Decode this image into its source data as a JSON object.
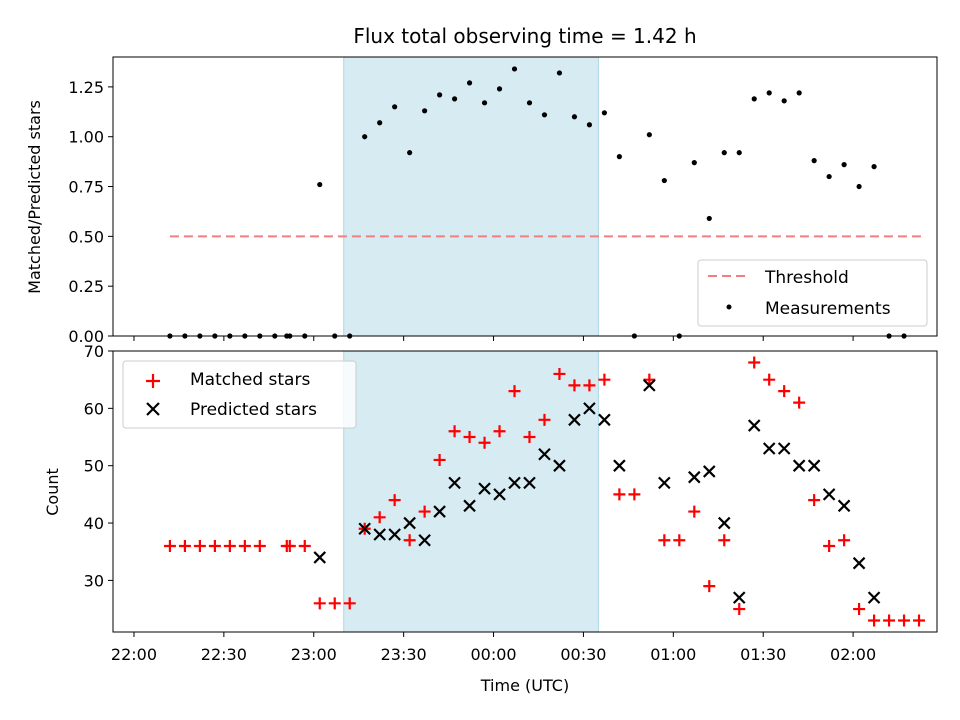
{
  "chart_data": {
    "title": "Flux total observing time = 1.42 h",
    "xlabel": "Time (UTC)",
    "x_ticks": [
      "22:00",
      "22:30",
      "23:00",
      "23:30",
      "00:00",
      "00:30",
      "01:00",
      "01:30",
      "02:00"
    ],
    "x_tick_minutes": [
      0,
      30,
      60,
      90,
      120,
      150,
      180,
      210,
      240
    ],
    "xlim_minutes": [
      -7,
      268
    ],
    "shaded_span_minutes": [
      70,
      155
    ],
    "shade_color": "#add8e6",
    "panels": [
      {
        "type": "scatter",
        "ylabel": "Matched/Predicted stars",
        "ylim": [
          0,
          1.4
        ],
        "y_ticks": [
          "0.00",
          "0.25",
          "0.50",
          "0.75",
          "1.00",
          "1.25"
        ],
        "y_tick_values": [
          0,
          0.25,
          0.5,
          0.75,
          1.0,
          1.25
        ],
        "threshold": {
          "name": "Threshold",
          "value": 0.5,
          "x_range_minutes": [
            12,
            263
          ],
          "color": "#f08080"
        },
        "legend": {
          "placement": "lower-right",
          "entries": [
            "Threshold",
            "Measurements"
          ]
        },
        "series": [
          {
            "name": "Measurements",
            "marker": "dot",
            "color": "#000000",
            "x_minutes": [
              12,
              17,
              22,
              27,
              32,
              37,
              42,
              47,
              51,
              52,
              57,
              62,
              67,
              72,
              77,
              82,
              87,
              92,
              97,
              102,
              107,
              112,
              117,
              122,
              127,
              132,
              137,
              142,
              147,
              152,
              157,
              162,
              167,
              172,
              177,
              182,
              187,
              192,
              197,
              202,
              207,
              212,
              217,
              222,
              227,
              232,
              237,
              242,
              247,
              252,
              257
            ],
            "y": [
              0,
              0,
              0,
              0,
              0,
              0,
              0,
              0,
              0,
              0,
              0,
              0.76,
              0,
              0,
              1.0,
              1.07,
              1.15,
              0.92,
              1.13,
              1.21,
              1.19,
              1.27,
              1.17,
              1.24,
              1.34,
              1.17,
              1.11,
              1.32,
              1.1,
              1.06,
              1.12,
              0.9,
              0,
              1.01,
              0.78,
              0,
              0.87,
              0.59,
              0.92,
              0.92,
              1.19,
              1.22,
              1.18,
              1.22,
              0.88,
              0.8,
              0.86,
              0.75,
              0.85,
              0,
              0
            ]
          }
        ]
      },
      {
        "type": "scatter",
        "ylabel": "Count",
        "ylim": [
          21,
          70
        ],
        "y_ticks": [
          "30",
          "40",
          "50",
          "60",
          "70"
        ],
        "y_tick_values": [
          30,
          40,
          50,
          60,
          70
        ],
        "legend": {
          "placement": "upper-left",
          "entries": [
            "Matched stars",
            "Predicted stars"
          ]
        },
        "series": [
          {
            "name": "Matched stars",
            "marker": "plus",
            "color": "#ff0000",
            "x_minutes": [
              12,
              17,
              22,
              27,
              32,
              37,
              42,
              51,
              52,
              57,
              62,
              67,
              72,
              77,
              82,
              87,
              92,
              97,
              102,
              107,
              112,
              117,
              122,
              127,
              132,
              137,
              142,
              147,
              152,
              157,
              162,
              167,
              172,
              177,
              182,
              187,
              192,
              197,
              202,
              207,
              212,
              217,
              222,
              227,
              232,
              237,
              242,
              247,
              252,
              257,
              262
            ],
            "y": [
              36,
              36,
              36,
              36,
              36,
              36,
              36,
              36,
              36,
              36,
              26,
              26,
              26,
              39,
              41,
              44,
              37,
              42,
              51,
              56,
              55,
              54,
              56,
              63,
              55,
              58,
              66,
              64,
              64,
              65,
              45,
              45,
              65,
              37,
              37,
              42,
              29,
              37,
              25,
              68,
              65,
              63,
              61,
              44,
              36,
              37,
              25,
              23,
              23,
              23,
              23
            ]
          },
          {
            "name": "Predicted stars",
            "marker": "x",
            "color": "#000000",
            "x_minutes": [
              62,
              77,
              82,
              87,
              92,
              97,
              102,
              107,
              112,
              117,
              122,
              127,
              132,
              137,
              142,
              147,
              152,
              157,
              162,
              172,
              177,
              187,
              192,
              197,
              202,
              207,
              212,
              217,
              222,
              227,
              232,
              237,
              242,
              247
            ],
            "y": [
              34,
              39,
              38,
              38,
              40,
              37,
              42,
              47,
              43,
              46,
              45,
              47,
              47,
              52,
              50,
              58,
              60,
              58,
              50,
              64,
              47,
              48,
              49,
              40,
              27,
              57,
              53,
              53,
              50,
              50,
              45,
              43,
              33,
              27
            ]
          }
        ]
      }
    ]
  }
}
